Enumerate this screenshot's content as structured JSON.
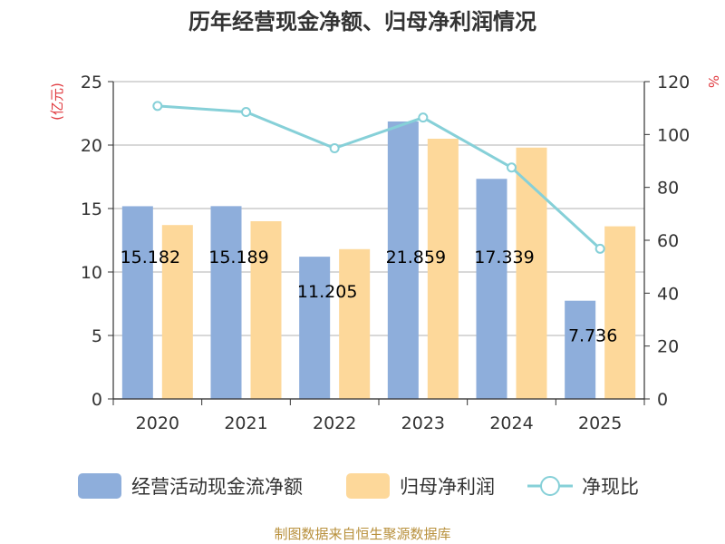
{
  "chart_data": {
    "type": "bar",
    "title": "历年经营现金净额、归母净利润情况",
    "categories": [
      "2020",
      "2021",
      "2022",
      "2023",
      "2024",
      "2025"
    ],
    "series": [
      {
        "name": "经营活动现金流净额",
        "type": "bar",
        "axis": "left",
        "values": [
          15.182,
          15.189,
          11.205,
          21.859,
          17.339,
          7.736
        ],
        "color": "#8eaedb",
        "labels": [
          "15.182",
          "15.189",
          "11.205",
          "21.859",
          "17.339",
          "7.736"
        ]
      },
      {
        "name": "归母净利润",
        "type": "bar",
        "axis": "left",
        "values": [
          13.7,
          14.0,
          11.8,
          20.5,
          19.8,
          13.6
        ],
        "color": "#fdd89a"
      },
      {
        "name": "净现比",
        "type": "line",
        "axis": "right",
        "values": [
          110.8,
          108.5,
          94.8,
          106.4,
          87.5,
          56.8
        ],
        "color": "#86d0d8"
      }
    ],
    "y_left": {
      "label": "(亿元)",
      "ylim": [
        0,
        25
      ],
      "ticks": [
        0,
        5,
        10,
        15,
        20,
        25
      ]
    },
    "y_right": {
      "label": "%",
      "ylim": [
        0,
        120
      ],
      "ticks": [
        0,
        20,
        40,
        60,
        80,
        100,
        120
      ]
    },
    "grid": true,
    "legend": "bottom"
  },
  "source": "制图数据来自恒生聚源数据库",
  "colors": {
    "axis_unit": "#e0393e",
    "source": "#b8903c",
    "grid": "#cccccc"
  }
}
